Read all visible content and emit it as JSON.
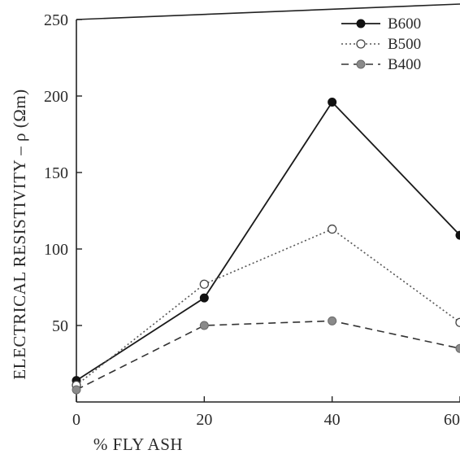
{
  "chart_data": {
    "type": "line",
    "xlabel": "% FLY ASH",
    "ylabel": "ELECTRICAL RESISTIVITY  – ρ (Ωm)",
    "xlim": [
      0,
      60
    ],
    "ylim": [
      0,
      250
    ],
    "x_ticks": [
      "0",
      "20",
      "40",
      "60"
    ],
    "y_ticks": [
      "50",
      "100",
      "150",
      "200",
      "250"
    ],
    "grid": false,
    "legend_position": "top-right",
    "series": [
      {
        "name": "B600",
        "style": "solid",
        "marker": "filled-black",
        "color": "#1a1a1a",
        "x": [
          0,
          20,
          40,
          60
        ],
        "y": [
          14,
          68,
          196,
          109
        ]
      },
      {
        "name": "B500",
        "style": "dotted",
        "marker": "open",
        "color": "#555555",
        "x": [
          0,
          20,
          40,
          60
        ],
        "y": [
          11,
          77,
          113,
          52
        ]
      },
      {
        "name": "B400",
        "style": "dashed",
        "marker": "filled-grey",
        "color": "#333333",
        "x": [
          0,
          20,
          40,
          60
        ],
        "y": [
          8,
          50,
          53,
          35
        ]
      }
    ]
  }
}
